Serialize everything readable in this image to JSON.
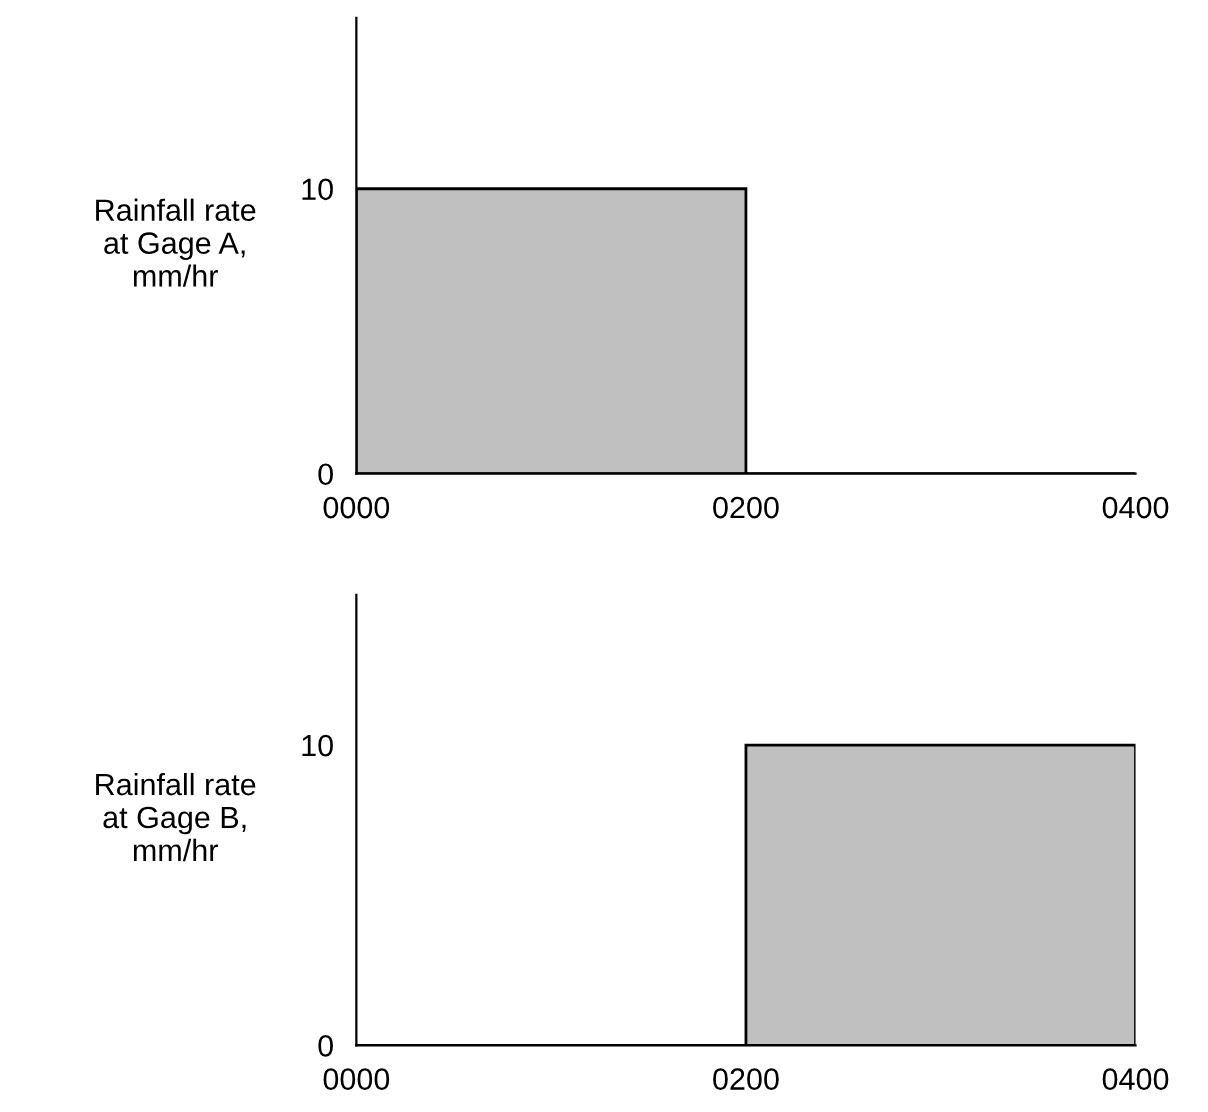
{
  "chart_data": [
    {
      "type": "histogram",
      "ylabel": "Rainfall rate\nat Gage A,\nmm/hr",
      "bins": [
        0,
        200,
        400
      ],
      "values": [
        10,
        0
      ],
      "color": "#c0c0c0",
      "xlim": [
        0,
        400
      ],
      "xticks": [
        {
          "value": 0,
          "label": "0000"
        },
        {
          "value": 200,
          "label": "0200"
        },
        {
          "value": 400,
          "label": "0400"
        }
      ],
      "ylim": [
        0,
        16
      ],
      "yticks": [
        0,
        10
      ],
      "grid": false
    },
    {
      "type": "histogram",
      "ylabel": "Rainfall rate\nat Gage B,\nmm/hr",
      "bins": [
        0,
        200,
        400
      ],
      "values": [
        0,
        10
      ],
      "color": "#c0c0c0",
      "xlim": [
        0,
        400
      ],
      "xticks": [
        {
          "value": 0,
          "label": "0000"
        },
        {
          "value": 200,
          "label": "0200"
        },
        {
          "value": 400,
          "label": "0400"
        }
      ],
      "ylim": [
        0,
        15
      ],
      "yticks": [
        0,
        10
      ],
      "grid": false
    }
  ]
}
